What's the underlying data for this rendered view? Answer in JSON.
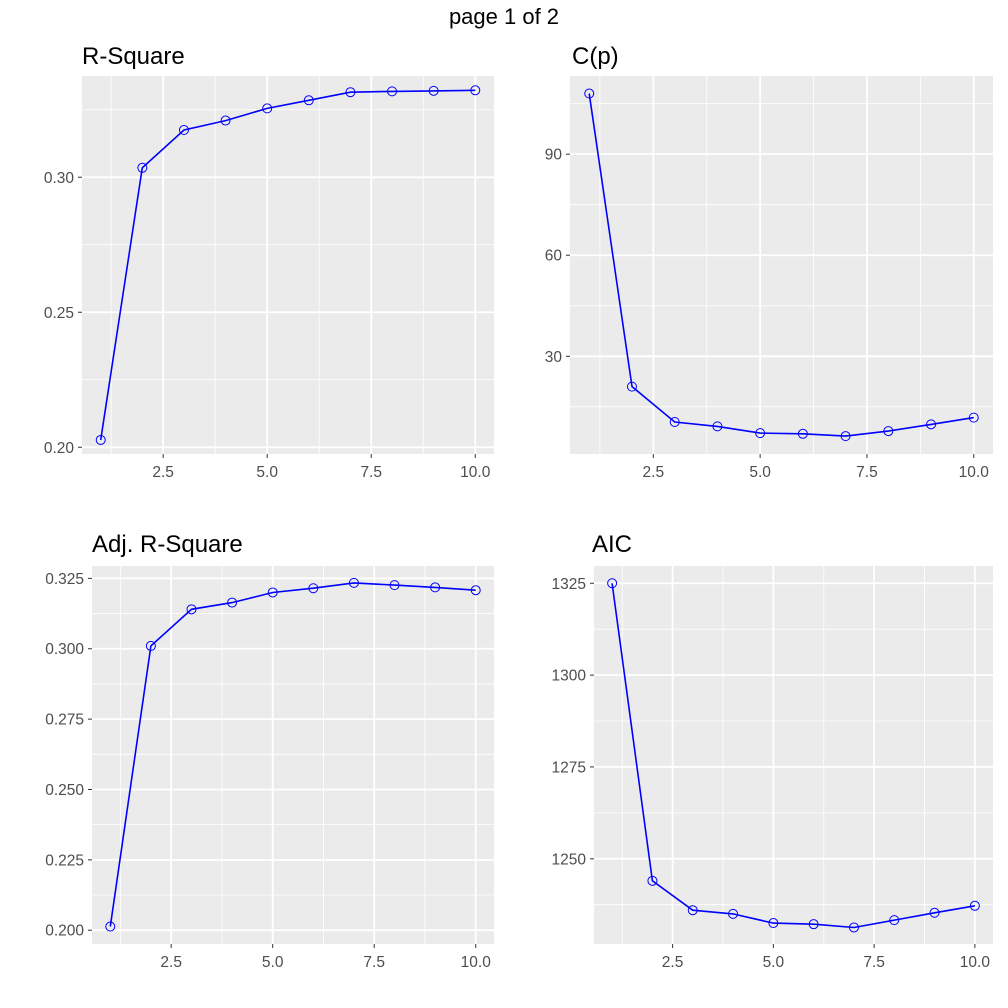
{
  "page": {
    "title": "page 1 of 2"
  },
  "style": {
    "panel_bg": "#EBEBEB",
    "grid_color": "#FFFFFF",
    "line_color": "#0000FF"
  },
  "chart_data": [
    {
      "type": "line",
      "title": "R-Square",
      "xlabel": "",
      "ylabel": "",
      "x": [
        1,
        2,
        3,
        4,
        5,
        6,
        7,
        8,
        9,
        10
      ],
      "series": [
        {
          "values": [
            0.2027,
            0.3035,
            0.3175,
            0.321,
            0.3255,
            0.3285,
            0.3315,
            0.3318,
            0.332,
            0.3322
          ]
        }
      ],
      "xlim": [
        0.55,
        10.45
      ],
      "ylim": [
        0.1975,
        0.3375
      ],
      "xticks": [
        2.5,
        5.0,
        7.5,
        10.0
      ],
      "xtick_labels": [
        "2.5",
        "5.0",
        "7.5",
        "10.0"
      ],
      "yticks": [
        0.2,
        0.25,
        0.3
      ],
      "ytick_labels": [
        "0.20",
        "0.25",
        "0.30"
      ],
      "grid": true,
      "markers": "open-circle"
    },
    {
      "type": "line",
      "title": "C(p)",
      "xlabel": "",
      "ylabel": "",
      "x": [
        1,
        2,
        3,
        4,
        5,
        6,
        7,
        8,
        9,
        10
      ],
      "series": [
        {
          "values": [
            108,
            21,
            10.5,
            9.2,
            7.2,
            7.0,
            6.3,
            7.8,
            9.8,
            11.8
          ]
        }
      ],
      "xlim": [
        0.55,
        10.45
      ],
      "ylim": [
        1.0,
        113.2
      ],
      "xticks": [
        2.5,
        5.0,
        7.5,
        10.0
      ],
      "xtick_labels": [
        "2.5",
        "5.0",
        "7.5",
        "10.0"
      ],
      "yticks": [
        30,
        60,
        90
      ],
      "ytick_labels": [
        "30",
        "60",
        "90"
      ],
      "grid": true,
      "markers": "open-circle"
    },
    {
      "type": "line",
      "title": "Adj. R-Square",
      "xlabel": "",
      "ylabel": "",
      "x": [
        1,
        2,
        3,
        4,
        5,
        6,
        7,
        8,
        9,
        10
      ],
      "series": [
        {
          "values": [
            0.2013,
            0.301,
            0.314,
            0.3164,
            0.32,
            0.3215,
            0.3234,
            0.3226,
            0.3218,
            0.3208
          ]
        }
      ],
      "xlim": [
        0.55,
        10.45
      ],
      "ylim": [
        0.1951,
        0.3294
      ],
      "xticks": [
        2.5,
        5.0,
        7.5,
        10.0
      ],
      "xtick_labels": [
        "2.5",
        "5.0",
        "7.5",
        "10.0"
      ],
      "yticks": [
        0.2,
        0.225,
        0.25,
        0.275,
        0.3,
        0.325
      ],
      "ytick_labels": [
        "0.200",
        "0.225",
        "0.250",
        "0.275",
        "0.300",
        "0.325"
      ],
      "grid": true,
      "markers": "open-circle"
    },
    {
      "type": "line",
      "title": "AIC",
      "xlabel": "",
      "ylabel": "",
      "x": [
        1,
        2,
        3,
        4,
        5,
        6,
        7,
        8,
        9,
        10
      ],
      "series": [
        {
          "values": [
            1325,
            1244,
            1236,
            1235,
            1232.5,
            1232.2,
            1231.3,
            1233.3,
            1235.3,
            1237.2
          ]
        }
      ],
      "xlim": [
        0.55,
        10.45
      ],
      "ylim": [
        1226.8,
        1329.7
      ],
      "xticks": [
        2.5,
        5.0,
        7.5,
        10.0
      ],
      "xtick_labels": [
        "2.5",
        "5.0",
        "7.5",
        "10.0"
      ],
      "yticks": [
        1250,
        1275,
        1300,
        1325
      ],
      "ytick_labels": [
        "1250",
        "1275",
        "1300",
        "1325"
      ],
      "grid": true,
      "markers": "open-circle"
    }
  ]
}
